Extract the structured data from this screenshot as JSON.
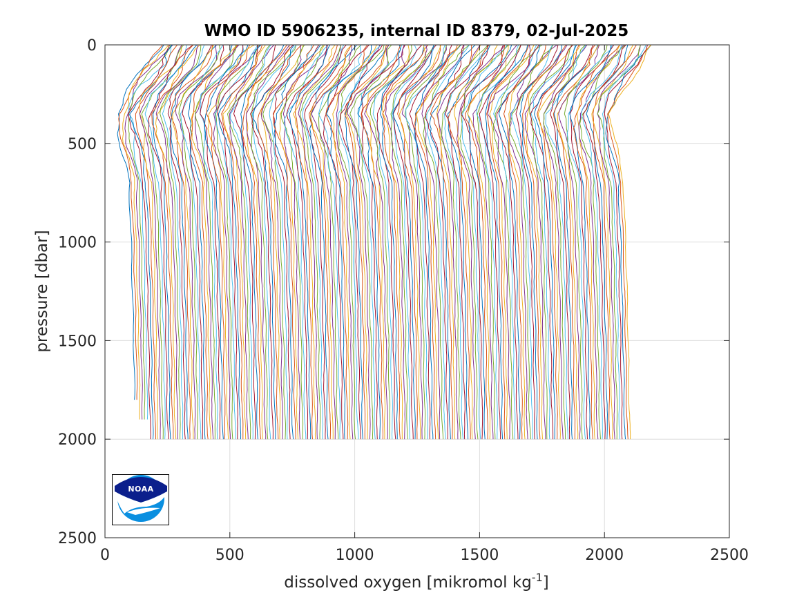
{
  "chart_data": {
    "type": "line",
    "title": "WMO ID 5906235, internal ID 8379, 02-Jul-2025",
    "xlabel": "dissolved oxygen [mikromol kg",
    "xlabel_sup": "-1",
    "xlabel_end": "]",
    "ylabel": "pressure [dbar]",
    "xlim": [
      0,
      2500
    ],
    "ylim": [
      0,
      2500
    ],
    "y_reversed": true,
    "x_ticks": [
      "0",
      "500",
      "1000",
      "1500",
      "2000",
      "2500"
    ],
    "y_ticks": [
      "0",
      "500",
      "1000",
      "1500",
      "2000",
      "2500"
    ],
    "grid": true,
    "profile_count": 199,
    "first_profile_x_start": 215,
    "profile_offset_per_profile": 10,
    "profile_shape": {
      "pressure": [
        0,
        100,
        250,
        350,
        500,
        700,
        1000,
        1500,
        1900,
        2000
      ],
      "oxygen": [
        0,
        -40,
        -140,
        -170,
        -150,
        -120,
        -110,
        -100,
        -95,
        -93
      ]
    },
    "series_colors": [
      "#0072bd",
      "#d95319",
      "#edb120",
      "#7e2f8e",
      "#77ac30",
      "#4dbeee",
      "#a2142f"
    ]
  },
  "logo": {
    "text": "NOAA"
  }
}
